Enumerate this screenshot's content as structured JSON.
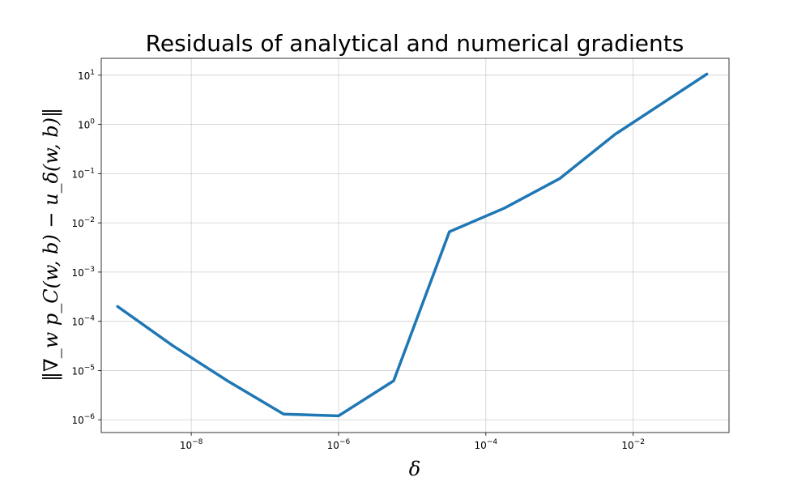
{
  "chart_data": {
    "type": "line",
    "title": "Residuals of analytical and numerical gradients",
    "xlabel": "δ",
    "ylabel": "‖∇_w p_C(w, b) − u_δ(w, b)‖",
    "xscale": "log",
    "yscale": "log",
    "xlim": [
      6e-10,
      0.2
    ],
    "ylim": [
      5.5e-07,
      22
    ],
    "grid": true,
    "x_ticks": [
      {
        "value": 1e-08,
        "base": "10",
        "exp": "−8"
      },
      {
        "value": 1e-06,
        "base": "10",
        "exp": "−6"
      },
      {
        "value": 0.0001,
        "base": "10",
        "exp": "−4"
      },
      {
        "value": 0.01,
        "base": "10",
        "exp": "−2"
      }
    ],
    "y_ticks": [
      {
        "value": 1e-06,
        "base": "10",
        "exp": "−6"
      },
      {
        "value": 1e-05,
        "base": "10",
        "exp": "−5"
      },
      {
        "value": 0.0001,
        "base": "10",
        "exp": "−4"
      },
      {
        "value": 0.001,
        "base": "10",
        "exp": "−3"
      },
      {
        "value": 0.01,
        "base": "10",
        "exp": "−2"
      },
      {
        "value": 0.1,
        "base": "10",
        "exp": "−1"
      },
      {
        "value": 1,
        "base": "10",
        "exp": "0"
      },
      {
        "value": 10,
        "base": "10",
        "exp": "1"
      }
    ],
    "series": [
      {
        "color": "#1f77b4",
        "x": [
          1e-09,
          5.6e-09,
          3.2e-08,
          1.8e-07,
          1e-06,
          5.6e-06,
          3.2e-05,
          0.00018,
          0.001,
          0.0056,
          0.1
        ],
        "y": [
          0.0002,
          3.2e-05,
          6e-06,
          1.3e-06,
          1.2e-06,
          6.2e-06,
          0.0066,
          0.02,
          0.079,
          0.62,
          10.5
        ]
      }
    ]
  }
}
